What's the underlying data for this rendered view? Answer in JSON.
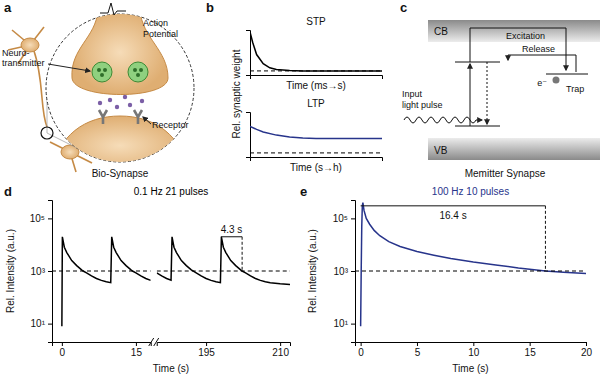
{
  "panel_labels": [
    "a",
    "b",
    "c",
    "d",
    "e"
  ],
  "diagrams": {
    "bio_synapse": {
      "action_potential": [
        "Action",
        "Potential"
      ],
      "neurotransmitter": [
        "Neuro-",
        "transmitter"
      ],
      "receptor": "Receptor",
      "title": "Bio-Synapse"
    },
    "memitter_synapse": {
      "cb": "CB",
      "vb": "VB",
      "excitation": "Excitation",
      "release": "Release",
      "trap": "Trap",
      "electron": "e⁻",
      "input": [
        "Input",
        "light pulse"
      ],
      "title": "Memitter Synapse"
    }
  },
  "chart_data": [
    {
      "type": "line",
      "title": "STP",
      "x_label": "Time (ms→s)",
      "y_label": "Rel. synaptic weight",
      "xlim": [
        0,
        10
      ],
      "ylim": [
        0.8,
        3
      ],
      "tick_labels": false,
      "series": [
        {
          "color": "#000000",
          "x": [
            0,
            0.2,
            0.5,
            1,
            1.5,
            2,
            3,
            4,
            6,
            10
          ],
          "values": [
            2.9,
            2.4,
            1.8,
            1.35,
            1.15,
            1.07,
            1.02,
            1.0,
            1.0,
            1.0
          ]
        },
        {
          "color": "#000000",
          "line_style": "dashed",
          "x": [
            0,
            10
          ],
          "values": [
            1,
            1
          ]
        }
      ]
    },
    {
      "type": "line",
      "title": "LTP",
      "x_label": "Time (s→h)",
      "xlim": [
        0,
        10
      ],
      "ylim": [
        0.8,
        3
      ],
      "tick_labels": false,
      "series": [
        {
          "color": "#27348b",
          "x": [
            0,
            0.5,
            1,
            2,
            3,
            4,
            5,
            6,
            8,
            10
          ],
          "values": [
            2.3,
            2.15,
            2.02,
            1.87,
            1.78,
            1.73,
            1.71,
            1.7,
            1.7,
            1.7
          ]
        },
        {
          "color": "#000000",
          "line_style": "dashed",
          "x": [
            0,
            10
          ],
          "values": [
            1,
            1
          ]
        }
      ]
    },
    {
      "type": "line",
      "title": "0.1 Hz 21 pulses",
      "x_label": "Time (s)",
      "y_label": "Rel. Intensity (a.u.)",
      "log": "y",
      "xlim": [
        [
          -2,
          18
        ],
        [
          185,
          212
        ]
      ],
      "xticks": [
        0,
        15,
        195,
        210
      ],
      "ylim": [
        2,
        500000
      ],
      "yticks": [
        {
          "value": 10,
          "label": "10¹"
        },
        {
          "value": 1000,
          "label": "10³"
        },
        {
          "value": 100000,
          "label": "10⁵"
        }
      ],
      "series": [
        {
          "color": "#000000",
          "x": [
            0,
            0.1,
            0.5,
            1,
            2,
            3,
            4,
            4.3,
            5,
            6,
            7,
            8,
            9,
            9.9,
            10.1,
            10.5,
            11,
            12,
            13,
            14,
            14.3,
            15,
            16,
            17,
            18,
            185,
            186,
            187,
            187.9,
            188.1,
            188.5,
            189,
            190,
            191,
            192,
            193,
            194,
            195,
            196,
            197,
            197.9,
            198.1,
            198.5,
            199,
            200,
            201,
            202,
            202.3,
            203,
            204,
            205,
            206,
            207,
            208,
            210,
            212
          ],
          "values": [
            8,
            20000,
            8000,
            5000,
            2500,
            1600,
            1100,
            1000,
            850,
            650,
            520,
            440,
            390,
            360,
            20000,
            8000,
            5000,
            2500,
            1600,
            1100,
            1000,
            850,
            650,
            520,
            440,
            850,
            650,
            520,
            445,
            20000,
            8000,
            5000,
            2500,
            1600,
            1100,
            850,
            650,
            520,
            440,
            390,
            360,
            20000,
            8000,
            5000,
            2500,
            1600,
            1100,
            1000,
            850,
            650,
            520,
            440,
            390,
            360,
            330,
            310
          ]
        },
        {
          "color": "#000000",
          "line_style": "dashed",
          "x": [
            -2,
            18,
            185,
            212
          ],
          "values": [
            1000,
            1000,
            1000,
            1000
          ]
        }
      ],
      "annotations": [
        {
          "text": "4.3 s",
          "x": [
            198,
            202.3
          ],
          "y": [
            20000,
            1000
          ]
        }
      ]
    },
    {
      "type": "line",
      "title": "100 Hz 10 pulses",
      "x_label": "Time (s)",
      "y_label": "Rel. Intensity (a.u.)",
      "log": "y",
      "xlim": [
        -0.5,
        20
      ],
      "xticks": [
        0,
        5,
        10,
        15,
        20
      ],
      "ylim": [
        2,
        500000
      ],
      "yticks": [
        {
          "value": 10,
          "label": "10¹"
        },
        {
          "value": 1000,
          "label": "10³"
        },
        {
          "value": 100000,
          "label": "10⁵"
        }
      ],
      "series": [
        {
          "color": "#27348b",
          "x": [
            0,
            0.05,
            0.1,
            0.15,
            0.2,
            0.3,
            0.5,
            0.8,
            1.2,
            1.7,
            2.5,
            3.5,
            5,
            6.5,
            8,
            10,
            12,
            14,
            16.4,
            18,
            20
          ],
          "values": [
            8,
            1000,
            50000,
            300000,
            400000,
            200000,
            100000,
            60000,
            35000,
            22000,
            13000,
            8500,
            5500,
            4000,
            3000,
            2200,
            1700,
            1300,
            1000,
            900,
            800
          ]
        },
        {
          "color": "#000000",
          "line_style": "dashed",
          "x": [
            -0.5,
            20
          ],
          "values": [
            1000,
            1000
          ]
        }
      ],
      "annotations": [
        {
          "text": "16.4 s",
          "x": [
            0,
            16.4
          ],
          "y": [
            300000,
            1000
          ]
        }
      ]
    }
  ]
}
